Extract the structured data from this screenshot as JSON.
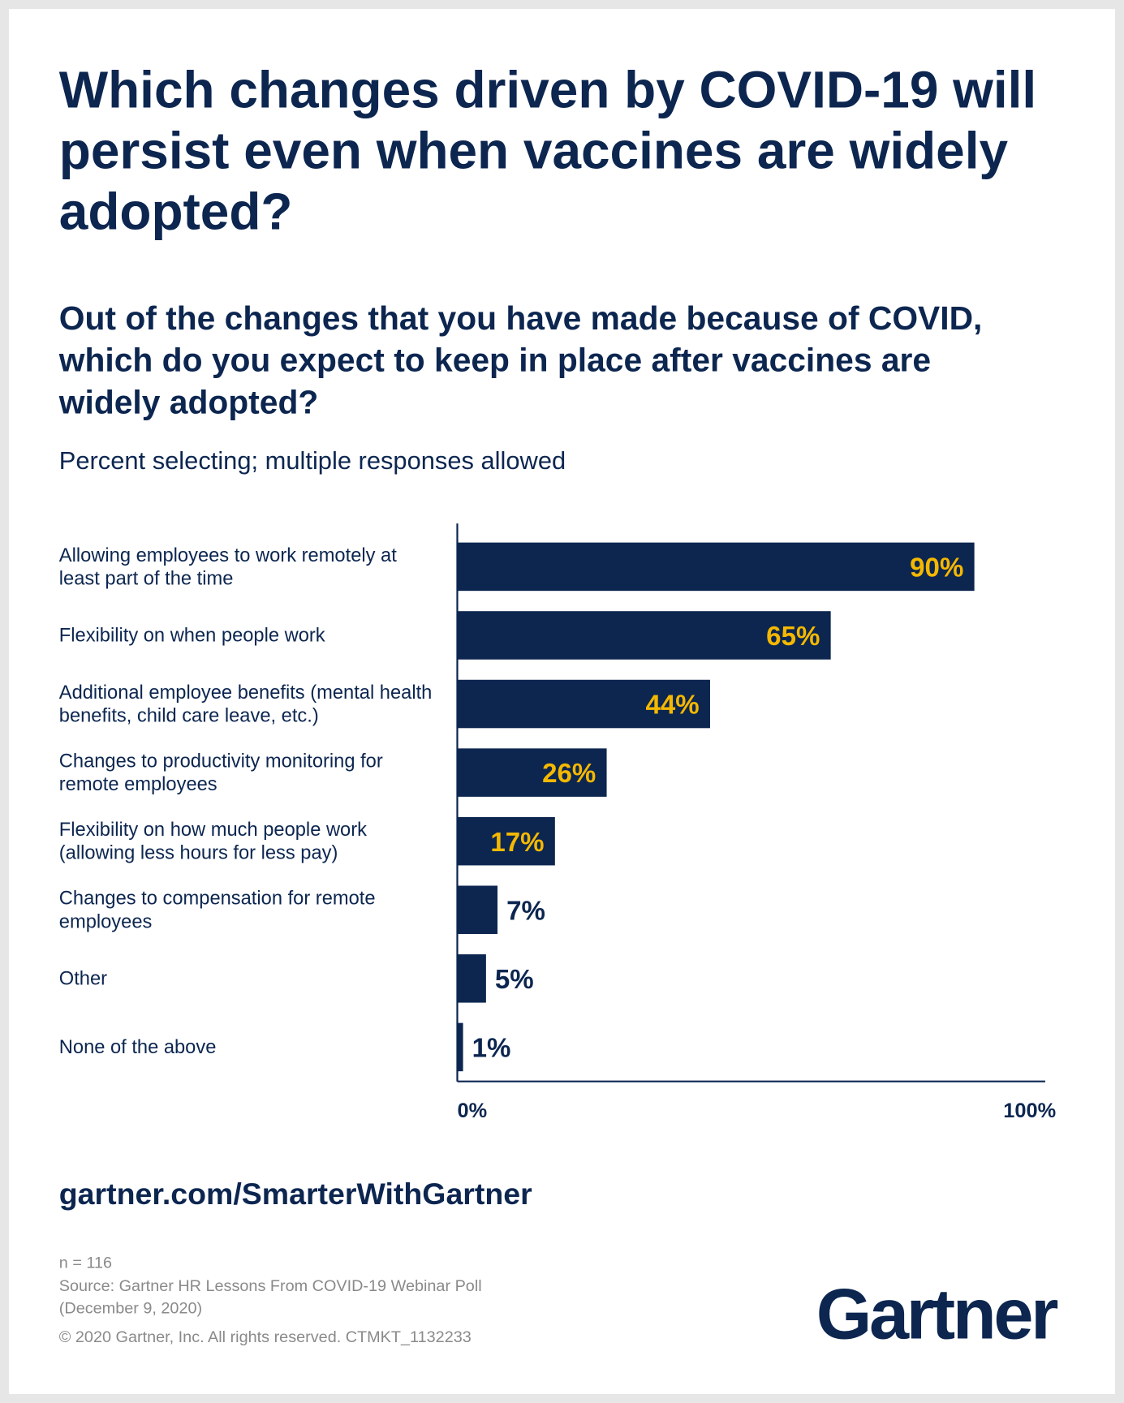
{
  "chart_data": {
    "type": "barh",
    "title": "Which changes driven by COVID-19 will persist even when vaccines are widely adopted?",
    "subtitle": "Out of the changes that you have made because of COVID, which do you expect to keep in place after vaccines are widely adopted?",
    "note": "Percent selecting; multiple responses allowed",
    "categories": [
      "Allowing employees to work remotely at least part of the time",
      "Flexibility on when people work",
      "Additional employee benefits (mental health benefits, child care leave, etc.)",
      "Changes to productivity monitoring for remote employees",
      "Flexibility on how much people work (allowing less hours for less pay)",
      "Changes to compensation for remote employees",
      "Other",
      "None of the above"
    ],
    "values": [
      90,
      65,
      44,
      26,
      17,
      7,
      5,
      1
    ],
    "value_labels": [
      "90%",
      "65%",
      "44%",
      "26%",
      "17%",
      "7%",
      "5%",
      "1%"
    ],
    "color": "#0c2650",
    "label_color": "#f5b800",
    "xlim": [
      0,
      100
    ],
    "xticks": [
      {
        "value": 0,
        "label": "0%"
      },
      {
        "value": 100,
        "label": "100%"
      }
    ]
  },
  "footer": {
    "url": "gartner.com/SmarterWithGartner",
    "sample": "n = 116",
    "source": "Source: Gartner HR Lessons From COVID-19 Webinar Poll (December 9, 2020)",
    "copyright": "© 2020 Gartner, Inc. All rights reserved. CTMKT_1132233",
    "logo": "Gartner"
  }
}
